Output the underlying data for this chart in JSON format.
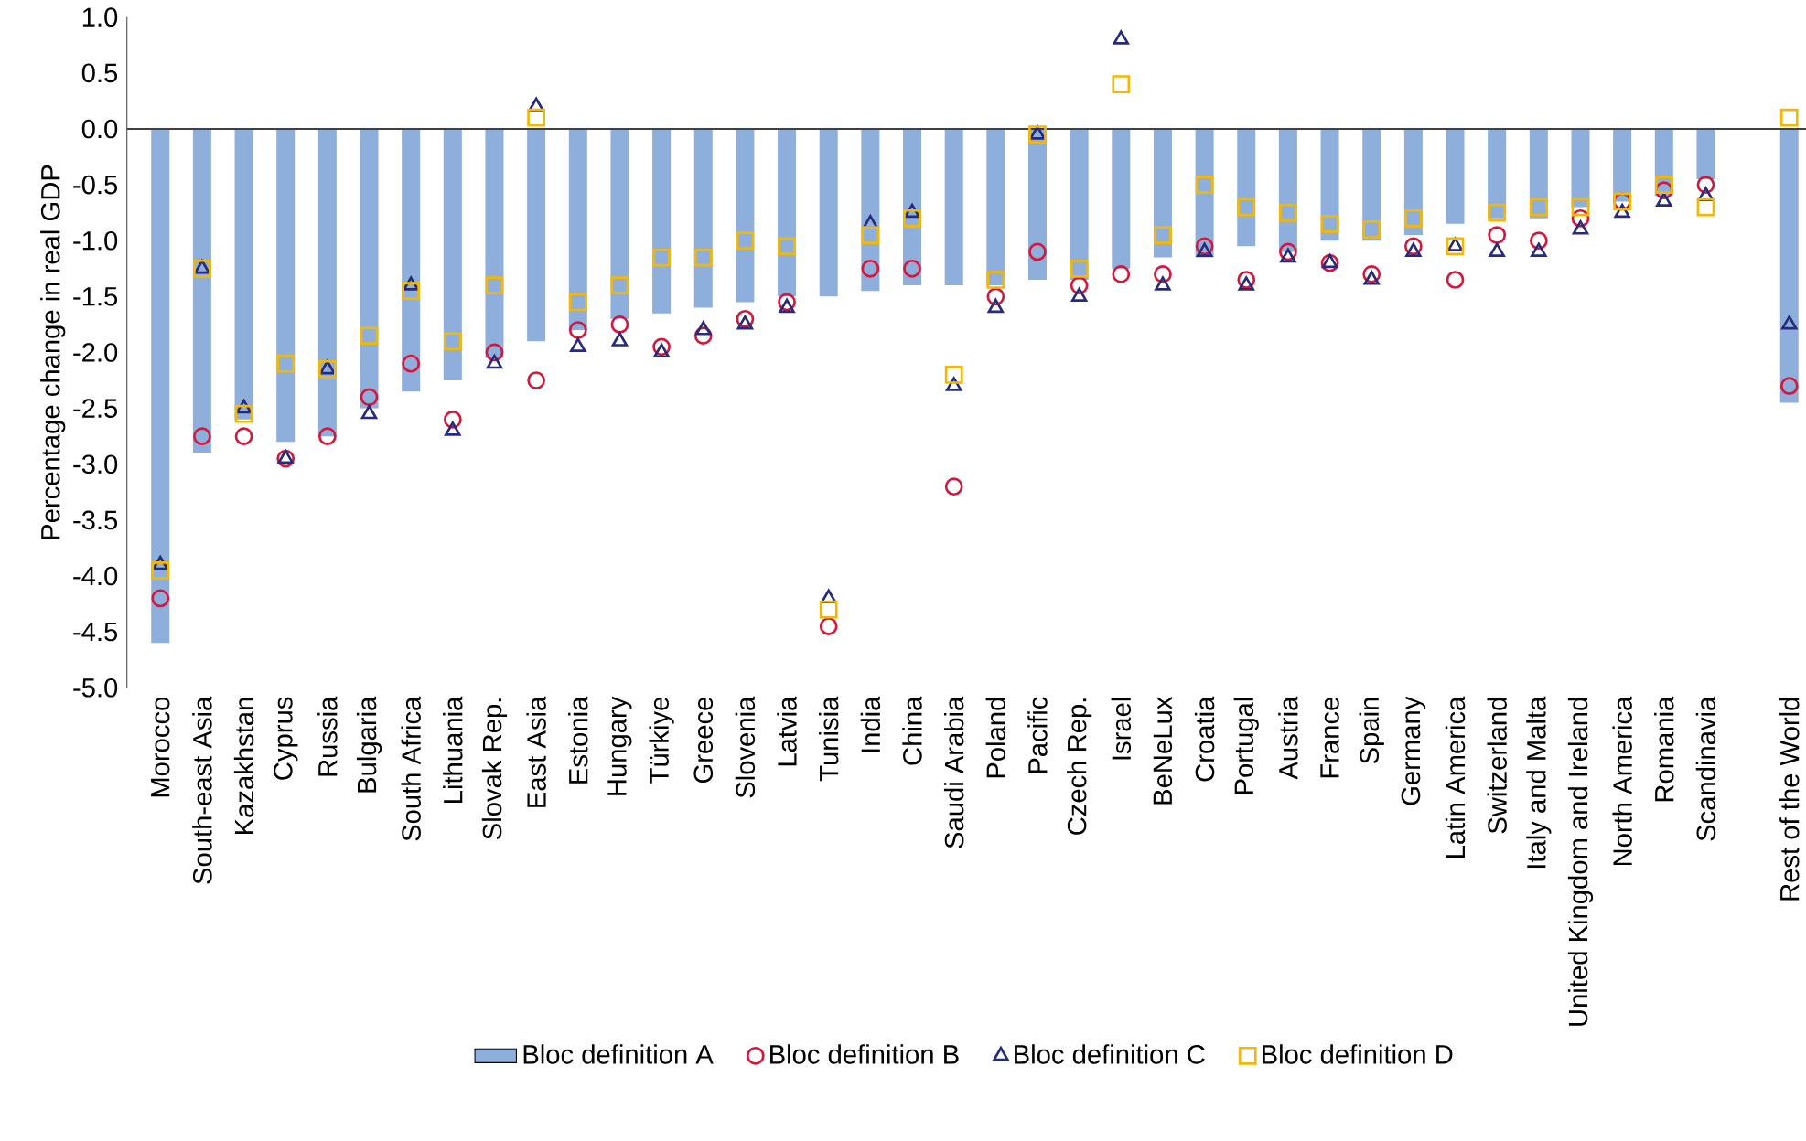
{
  "chart_data": {
    "type": "bar",
    "ylabel": "Percentage change in real GDP",
    "categories": [
      "Morocco",
      "South-east Asia",
      "Kazakhstan",
      "Cyprus",
      "Russia",
      "Bulgaria",
      "South Africa",
      "Lithuania",
      "Slovak Rep.",
      "East Asia",
      "Estonia",
      "Hungary",
      "Türkiye",
      "Greece",
      "Slovenia",
      "Latvia",
      "Tunisia",
      "India",
      "China",
      "Saudi Arabia",
      "Poland",
      "Pacific",
      "Czech Rep.",
      "Israel",
      "BeNeLux",
      "Croatia",
      "Portugal",
      "Austria",
      "France",
      "Spain",
      "Germany",
      "Latin America",
      "Switzerland",
      "Italy and Malta",
      "United Kingdom and Ireland",
      "North America",
      "Romania",
      "Scandinavia",
      null,
      "Rest of the World"
    ],
    "series": [
      {
        "name": "Bloc definition A",
        "color": "#8eaedc",
        "values": [
          -4.6,
          -2.9,
          -2.6,
          -2.8,
          -2.75,
          -2.5,
          -2.35,
          -2.25,
          -2.05,
          -1.9,
          -1.8,
          -1.7,
          -1.65,
          -1.6,
          -1.55,
          -1.5,
          -1.5,
          -1.45,
          -1.4,
          -1.4,
          -1.4,
          -1.35,
          -1.35,
          -1.25,
          -1.15,
          -1.15,
          -1.05,
          -1.1,
          -1.0,
          -1.0,
          -0.95,
          -0.85,
          -0.8,
          -0.8,
          -0.7,
          -0.65,
          -0.6,
          -0.45,
          null,
          -2.45
        ]
      },
      {
        "name": "Bloc definition B",
        "type": "scatter",
        "marker": "circle",
        "color": "#d6163b",
        "values": [
          -4.2,
          -2.75,
          -2.75,
          -2.95,
          -2.75,
          -2.4,
          -2.1,
          -2.6,
          -2.0,
          -2.25,
          -1.8,
          -1.75,
          -1.95,
          -1.85,
          -1.7,
          -1.55,
          -4.45,
          -1.25,
          -1.25,
          -3.2,
          -1.5,
          -1.1,
          -1.4,
          -1.3,
          -1.3,
          -1.05,
          -1.35,
          -1.1,
          -1.2,
          -1.3,
          -1.05,
          -1.35,
          -0.95,
          -1.0,
          -0.8,
          -0.65,
          -0.55,
          -0.5,
          null,
          -2.3
        ]
      },
      {
        "name": "Bloc definition C",
        "type": "scatter",
        "marker": "triangle",
        "color": "#262b7a",
        "values": [
          -3.9,
          -1.25,
          -2.5,
          -2.95,
          -2.15,
          -2.55,
          -1.4,
          -2.7,
          -2.1,
          0.2,
          -1.95,
          -1.9,
          -2.0,
          -1.8,
          -1.75,
          -1.6,
          -4.2,
          -0.85,
          -0.75,
          -2.3,
          -1.6,
          -0.05,
          -1.5,
          0.8,
          -1.4,
          -1.1,
          -1.4,
          -1.15,
          -1.2,
          -1.35,
          -1.1,
          -1.05,
          -1.1,
          -1.1,
          -0.9,
          -0.75,
          -0.65,
          -0.6,
          null,
          -1.75
        ]
      },
      {
        "name": "Bloc definition D",
        "type": "scatter",
        "marker": "square",
        "color": "#f5b800",
        "values": [
          -3.95,
          -1.25,
          -2.55,
          -2.1,
          -2.15,
          -1.85,
          -1.45,
          -1.9,
          -1.4,
          0.1,
          -1.55,
          -1.4,
          -1.15,
          -1.15,
          -1.0,
          -1.05,
          -4.3,
          -0.95,
          -0.8,
          -2.2,
          -1.35,
          -0.05,
          -1.25,
          0.4,
          -0.95,
          -0.5,
          -0.7,
          -0.75,
          -0.85,
          -0.9,
          -0.8,
          -1.05,
          -0.75,
          -0.7,
          -0.7,
          -0.65,
          -0.5,
          -0.7,
          null,
          0.1
        ]
      }
    ],
    "ylim": [
      -5,
      1
    ],
    "yticks": [
      {
        "value": 1,
        "label": "1.0"
      },
      {
        "value": 0.5,
        "label": "0.5"
      },
      {
        "value": 0,
        "label": "0.0"
      },
      {
        "value": -0.5,
        "label": "-0.5"
      },
      {
        "value": -1,
        "label": "-1.0"
      },
      {
        "value": -1.5,
        "label": "-1.5"
      },
      {
        "value": -2,
        "label": "-2.0"
      },
      {
        "value": -2.5,
        "label": "-2.5"
      },
      {
        "value": -3,
        "label": "-3.0"
      },
      {
        "value": -3.5,
        "label": "-3.5"
      },
      {
        "value": -4,
        "label": "-4.0"
      },
      {
        "value": -4.5,
        "label": "-4.5"
      },
      {
        "value": -5,
        "label": "-5.0"
      }
    ],
    "legend": "bottom"
  }
}
